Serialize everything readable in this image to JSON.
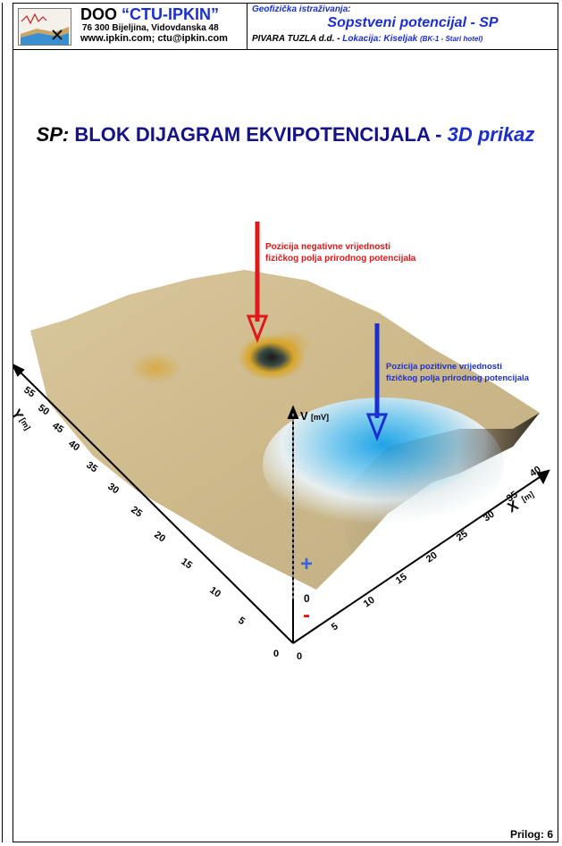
{
  "header": {
    "company_prefix": "DOO",
    "company_name": "“CTU-IPKIN”",
    "address": "76 300 Bijeljina, Vidovdanska 48",
    "web": "www.ipkin.com; ctu@ipkin.com",
    "topic_label": "Geofizička istraživanja:",
    "topic_title": "Sopstveni potencijal - SP",
    "client": "PIVARA TUZLA d.d. -",
    "location": "Lokacija: Kiseljak",
    "location_detail": "(BK-1 - Stari hotel)"
  },
  "title": {
    "prefix": "SP:",
    "main": "BLOK DIJAGRAM EKVIPOTENCIJALA -",
    "suffix": "3D prikaz"
  },
  "annotations": {
    "negative_line1": "Pozicija negativne vrijednosti",
    "negative_line2": "fizičkog polja prirodnog potencijala",
    "positive_line1": "Pozicija pozitivne vrijednosti",
    "positive_line2": "fizičkog polja prirodnog potencijala",
    "negative_color": "#e01818",
    "positive_color": "#1b2fd0"
  },
  "axes": {
    "y_label": "Y",
    "y_unit": "[m]",
    "x_label": "X",
    "x_unit": "[m]",
    "v_label": "V",
    "v_unit": "[mV]",
    "y_ticks": [
      "0",
      "5",
      "10",
      "15",
      "20",
      "25",
      "30",
      "35",
      "40",
      "45",
      "50",
      "55"
    ],
    "x_ticks": [
      "0",
      "5",
      "10",
      "15",
      "20",
      "25",
      "30",
      "35",
      "40"
    ],
    "v_zero": "0",
    "plus_sign": "+",
    "minus_sign": "-"
  },
  "footer": {
    "label": "Prilog: 6"
  }
}
